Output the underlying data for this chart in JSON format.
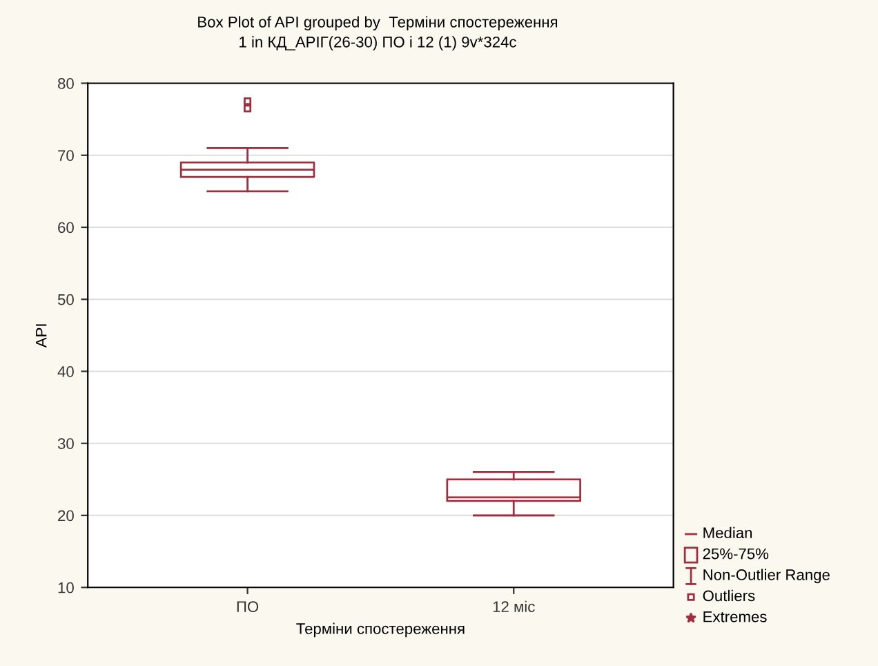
{
  "chart_data": {
    "type": "box",
    "title": "Box Plot of API grouped by  Терміни спостереження",
    "subtitle": "1 in КД_АРІГ(26-30) ПО і 12 (1) 9v*324c",
    "xlabel": "Терміни спостереження",
    "ylabel": "API",
    "categories": [
      "ПО",
      "12 міс"
    ],
    "series": [
      {
        "color": "#a03040",
        "boxes": [
          {
            "low": 65,
            "q1": 67,
            "median": 68,
            "q3": 69,
            "high": 71,
            "outliers": [
              76.5,
              77.5
            ]
          },
          {
            "low": 20,
            "q1": 22,
            "median": 22.5,
            "q3": 25,
            "high": 26
          }
        ]
      }
    ],
    "annotations": [
      "Median",
      "25%-75%",
      "Non-Outlier Range",
      "Outliers",
      "Extremes"
    ],
    "ylim": [
      10,
      80
    ],
    "yticks": [
      10,
      20,
      30,
      40,
      50,
      60,
      70,
      80
    ],
    "grid": "y"
  }
}
